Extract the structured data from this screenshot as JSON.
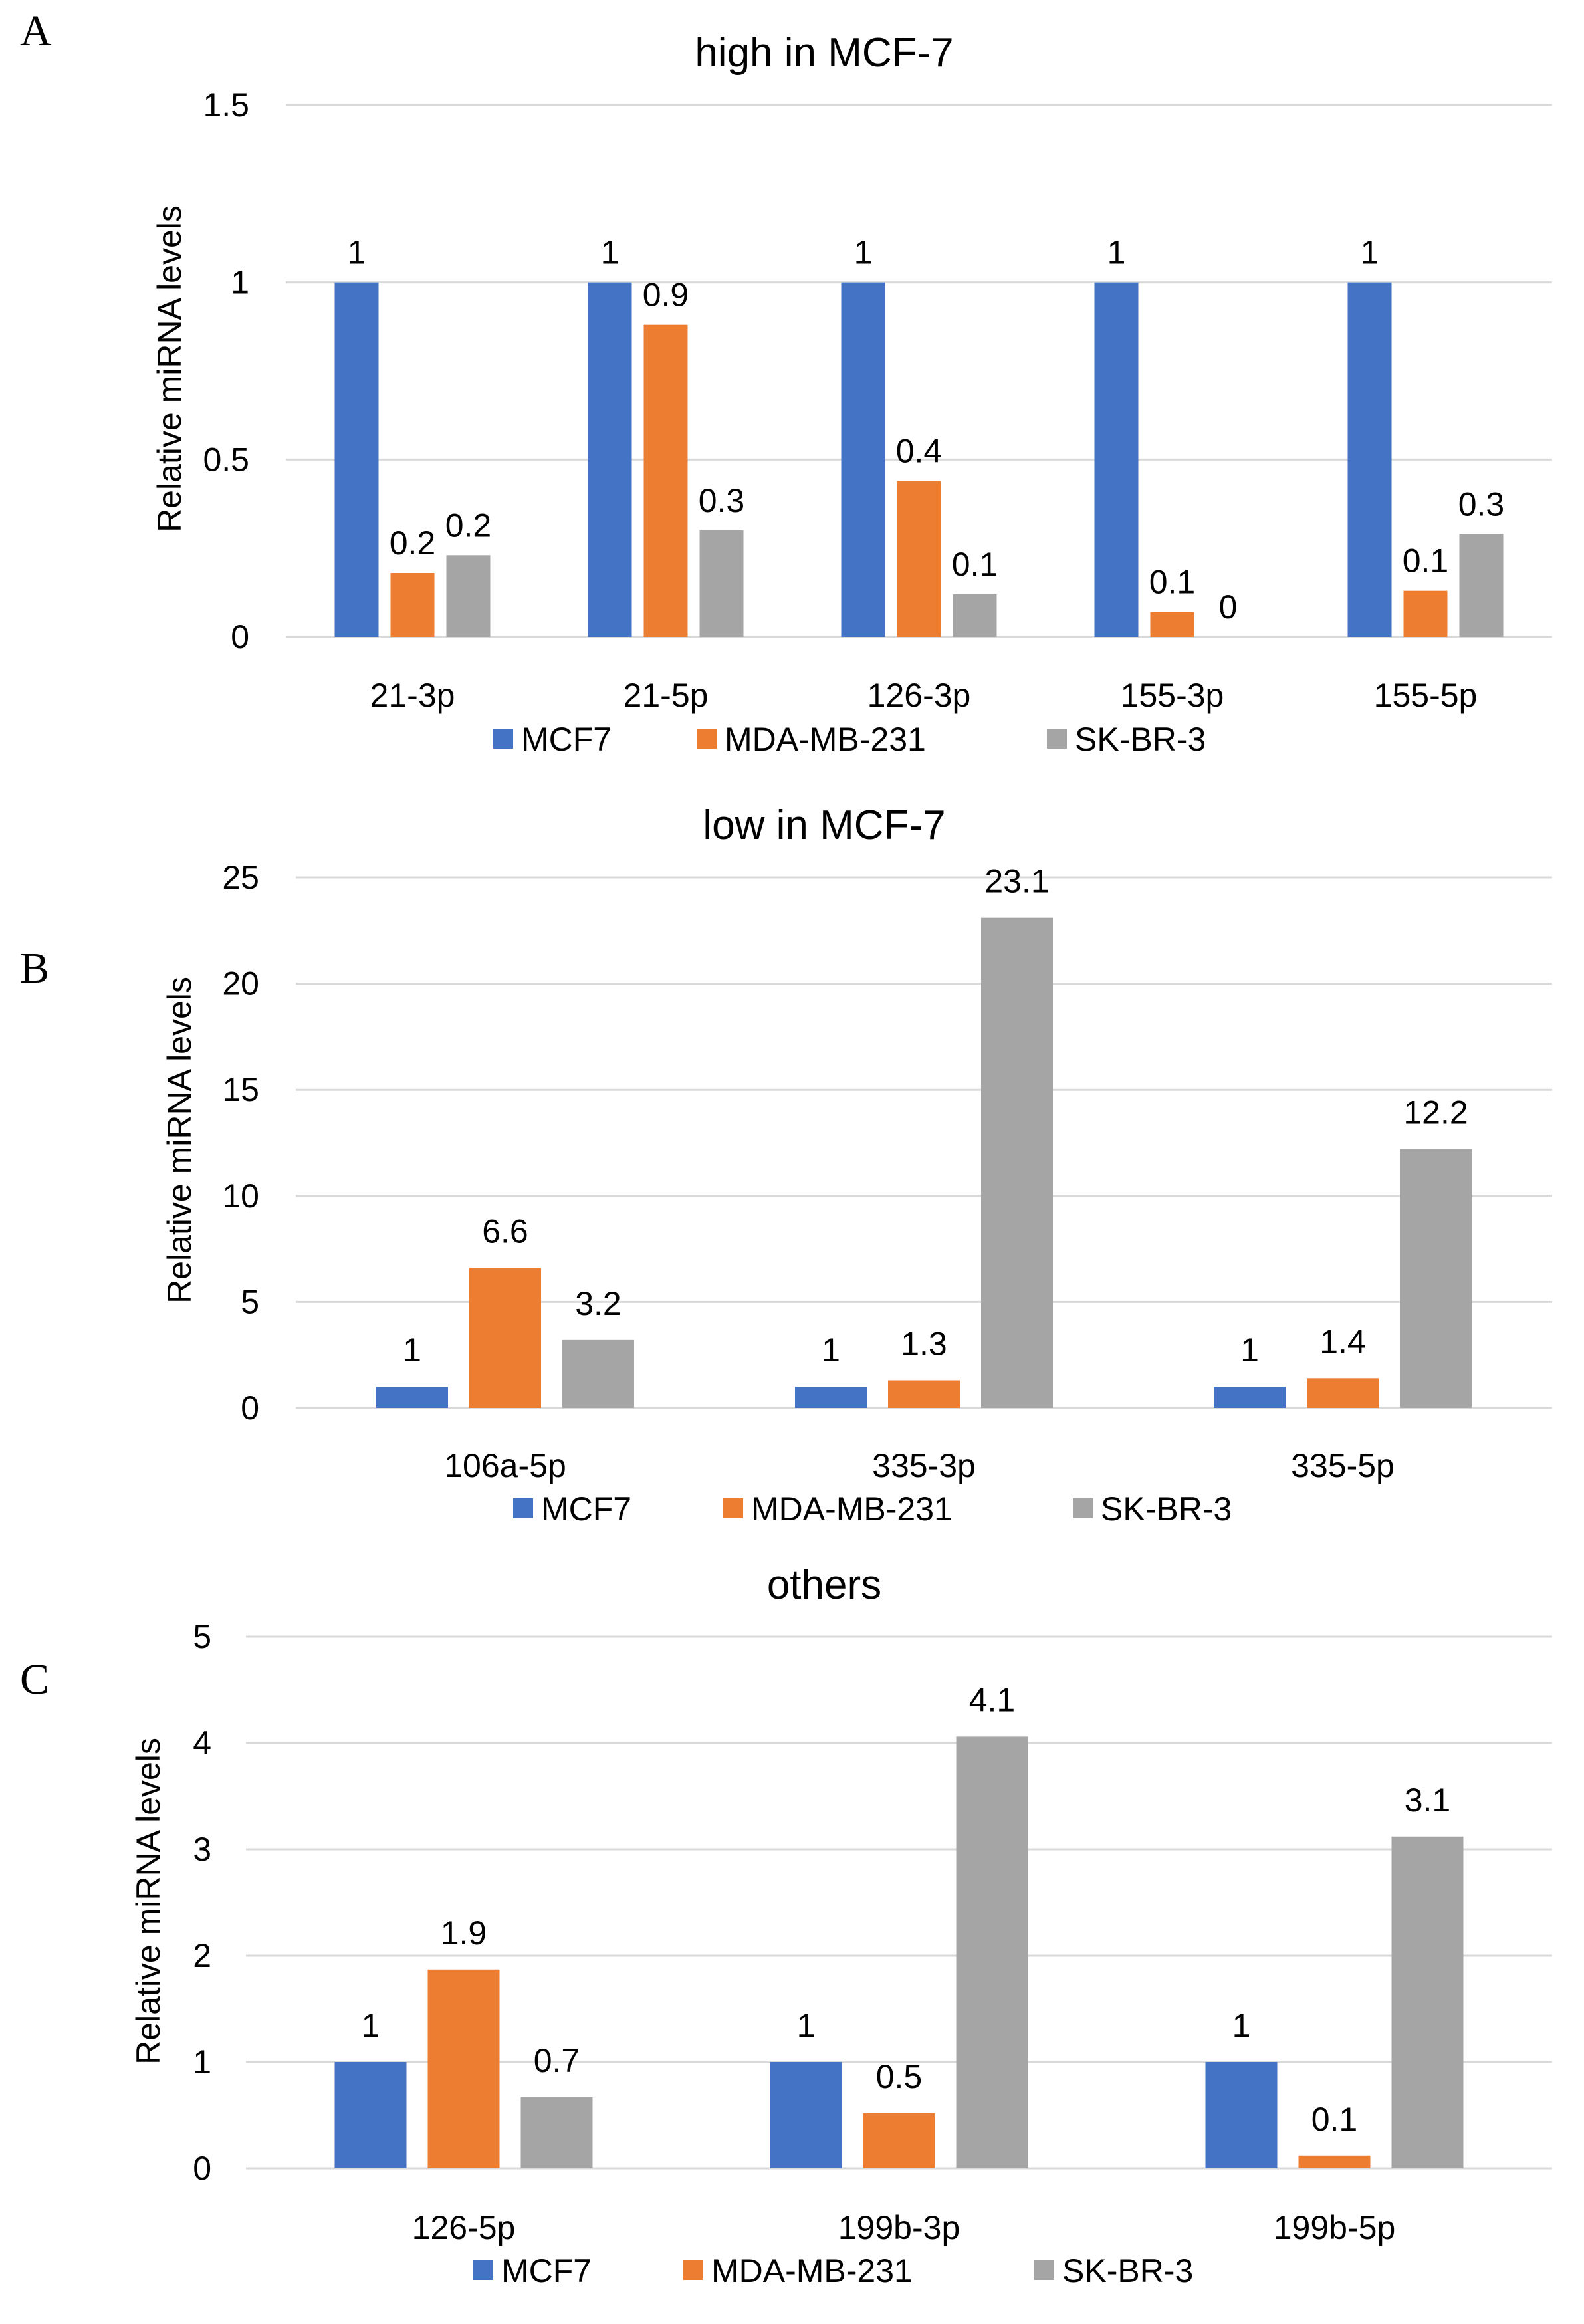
{
  "colors": {
    "MCF7": "#4472C4",
    "MDA-MB-231": "#ED7D31",
    "SK-BR-3": "#A5A5A5"
  },
  "chart_data": [
    {
      "panel": "A",
      "type": "bar",
      "title": "high in MCF-7",
      "xlabel": "",
      "ylabel": "Relative miRNA levels",
      "ylim": [
        0,
        1.5
      ],
      "yticks": [
        "0",
        "0.5",
        "1",
        "1.5"
      ],
      "ytick_values": [
        0,
        0.5,
        1,
        1.5
      ],
      "categories": [
        "21-3p",
        "21-5p",
        "126-3p",
        "155-3p",
        "155-5p"
      ],
      "series": [
        {
          "name": "MCF7",
          "values": [
            1,
            1,
            1,
            1,
            1
          ],
          "labels": [
            "1",
            "1",
            "1",
            "1",
            "1"
          ]
        },
        {
          "name": "MDA-MB-231",
          "values": [
            0.18,
            0.88,
            0.44,
            0.07,
            0.13
          ],
          "labels": [
            "0.2",
            "0.9",
            "0.4",
            "0.1",
            "0.1"
          ]
        },
        {
          "name": "SK-BR-3",
          "values": [
            0.23,
            0.3,
            0.12,
            0.0,
            0.29
          ],
          "labels": [
            "0.2",
            "0.3",
            "0.1",
            "0",
            "0.3"
          ]
        }
      ],
      "legend": [
        "MCF7",
        "MDA-MB-231",
        "SK-BR-3"
      ]
    },
    {
      "panel": "B",
      "type": "bar",
      "title": "low in MCF-7",
      "xlabel": "",
      "ylabel": "Relative miRNA levels",
      "ylim": [
        0,
        25
      ],
      "yticks": [
        "0",
        "5",
        "10",
        "15",
        "20",
        "25"
      ],
      "ytick_values": [
        0,
        5,
        10,
        15,
        20,
        25
      ],
      "categories": [
        "106a-5p",
        "335-3p",
        "335-5p"
      ],
      "series": [
        {
          "name": "MCF7",
          "values": [
            1,
            1,
            1
          ],
          "labels": [
            "1",
            "1",
            "1"
          ]
        },
        {
          "name": "MDA-MB-231",
          "values": [
            6.6,
            1.3,
            1.4
          ],
          "labels": [
            "6.6",
            "1.3",
            "1.4"
          ]
        },
        {
          "name": "SK-BR-3",
          "values": [
            3.2,
            23.1,
            12.2
          ],
          "labels": [
            "3.2",
            "23.1",
            "12.2"
          ]
        }
      ],
      "legend": [
        "MCF7",
        "MDA-MB-231",
        "SK-BR-3"
      ]
    },
    {
      "panel": "C",
      "type": "bar",
      "title": "others",
      "xlabel": "",
      "ylabel": "Relative miRNA levels",
      "ylim": [
        0,
        5
      ],
      "yticks": [
        "0",
        "1",
        "2",
        "3",
        "4",
        "5"
      ],
      "ytick_values": [
        0,
        1,
        2,
        3,
        4,
        5
      ],
      "categories": [
        "126-5p",
        "199b-3p",
        "199b-5p"
      ],
      "series": [
        {
          "name": "MCF7",
          "values": [
            1,
            1,
            1
          ],
          "labels": [
            "1",
            "1",
            "1"
          ]
        },
        {
          "name": "MDA-MB-231",
          "values": [
            1.87,
            0.52,
            0.12
          ],
          "labels": [
            "1.9",
            "0.5",
            "0.1"
          ]
        },
        {
          "name": "SK-BR-3",
          "values": [
            0.67,
            4.06,
            3.12
          ],
          "labels": [
            "0.7",
            "4.1",
            "3.1"
          ]
        }
      ],
      "legend": [
        "MCF7",
        "MDA-MB-231",
        "SK-BR-3"
      ]
    }
  ]
}
